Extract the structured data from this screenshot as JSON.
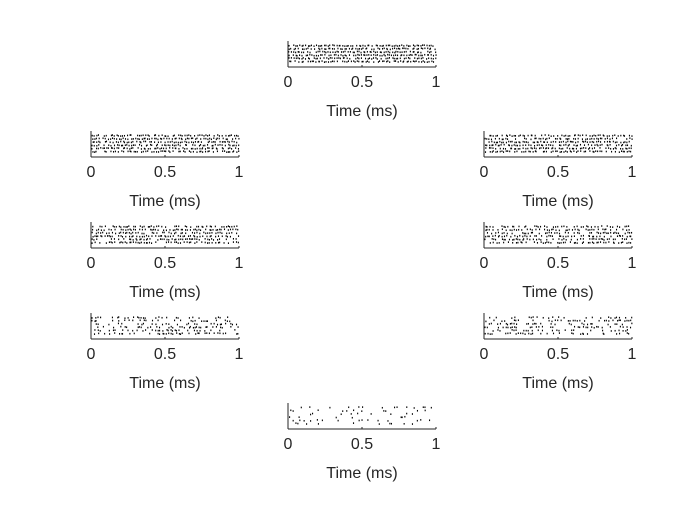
{
  "chart_data": [
    {
      "type": "scatter",
      "subplot": "top-center",
      "xlabel": "Time (ms)",
      "xlim": [
        0,
        1
      ],
      "xticks": [
        0,
        0.5,
        1
      ],
      "xtick_labels": [
        "0",
        "0.5",
        "1"
      ],
      "trials": 6,
      "spike_density": 0.9,
      "dot_color": "#000000",
      "grid": false
    },
    {
      "type": "scatter",
      "subplot": "upper-left",
      "xlabel": "Time (ms)",
      "xlim": [
        0,
        1
      ],
      "xticks": [
        0,
        0.5,
        1
      ],
      "xtick_labels": [
        "0",
        "0.5",
        "1"
      ],
      "trials": 6,
      "spike_density": 0.85,
      "dot_color": "#000000",
      "grid": false
    },
    {
      "type": "scatter",
      "subplot": "upper-right",
      "xlabel": "Time (ms)",
      "xlim": [
        0,
        1
      ],
      "xticks": [
        0,
        0.5,
        1
      ],
      "xtick_labels": [
        "0",
        "0.5",
        "1"
      ],
      "trials": 6,
      "spike_density": 0.85,
      "dot_color": "#000000",
      "grid": false
    },
    {
      "type": "scatter",
      "subplot": "middle-left",
      "xlabel": "Time (ms)",
      "xlim": [
        0,
        1
      ],
      "xticks": [
        0,
        0.5,
        1
      ],
      "xtick_labels": [
        "0",
        "0.5",
        "1"
      ],
      "trials": 6,
      "spike_density": 0.7,
      "dot_color": "#000000",
      "grid": false
    },
    {
      "type": "scatter",
      "subplot": "middle-right",
      "xlabel": "Time (ms)",
      "xlim": [
        0,
        1
      ],
      "xticks": [
        0,
        0.5,
        1
      ],
      "xtick_labels": [
        "0",
        "0.5",
        "1"
      ],
      "trials": 6,
      "spike_density": 0.65,
      "dot_color": "#000000",
      "grid": false
    },
    {
      "type": "scatter",
      "subplot": "lower-left",
      "xlabel": "Time (ms)",
      "xlim": [
        0,
        1
      ],
      "xticks": [
        0,
        0.5,
        1
      ],
      "xtick_labels": [
        "0",
        "0.5",
        "1"
      ],
      "trials": 6,
      "spike_density": 0.4,
      "dot_color": "#000000",
      "grid": false
    },
    {
      "type": "scatter",
      "subplot": "lower-right",
      "xlabel": "Time (ms)",
      "xlim": [
        0,
        1
      ],
      "xticks": [
        0,
        0.5,
        1
      ],
      "xtick_labels": [
        "0",
        "0.5",
        "1"
      ],
      "trials": 6,
      "spike_density": 0.35,
      "dot_color": "#000000",
      "grid": false
    },
    {
      "type": "scatter",
      "subplot": "bottom-center",
      "xlabel": "Time (ms)",
      "xlim": [
        0,
        1
      ],
      "xticks": [
        0,
        0.5,
        1
      ],
      "xtick_labels": [
        "0",
        "0.5",
        "1"
      ],
      "trials": 6,
      "spike_density": 0.2,
      "dot_color": "#000000",
      "grid": false
    }
  ]
}
